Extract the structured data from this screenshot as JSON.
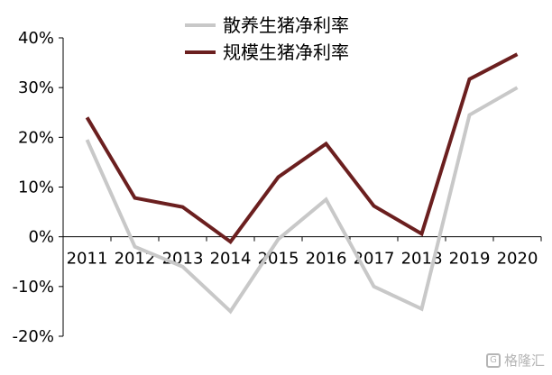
{
  "chart_data": {
    "type": "line",
    "title": "",
    "xlabel": "",
    "ylabel": "",
    "categories": [
      "2011",
      "2012",
      "2013",
      "2014",
      "2015",
      "2016",
      "2017",
      "2018",
      "2019",
      "2020"
    ],
    "ylim": [
      -20,
      40
    ],
    "yticks": [
      -20,
      -10,
      0,
      10,
      20,
      30,
      40
    ],
    "ytick_labels": [
      "-20%",
      "-10%",
      "0%",
      "10%",
      "20%",
      "30%",
      "40%"
    ],
    "grid": false,
    "legend_position": "top-center",
    "series": [
      {
        "name": "散养生猪净利率",
        "color": "#c8c8c8",
        "values": [
          19.5,
          -2.0,
          -6.0,
          -15.0,
          -0.5,
          7.5,
          -10.0,
          -14.5,
          24.5,
          30.0
        ]
      },
      {
        "name": "规模生猪净利率",
        "color": "#6b1f1f",
        "values": [
          24.0,
          7.8,
          6.0,
          -1.0,
          12.0,
          18.7,
          6.2,
          0.6,
          31.7,
          36.7
        ]
      }
    ]
  },
  "watermark": {
    "logo_icon": "gelonghui-logo-icon",
    "text": "格隆汇"
  }
}
